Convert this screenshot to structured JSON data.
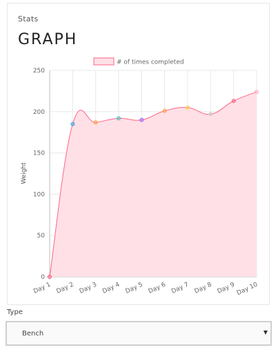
{
  "card": {
    "label": "Stats",
    "title": "GRAPH"
  },
  "form": {
    "type_label": "Type",
    "type_value": "Bench",
    "caret": "▼"
  },
  "colors": {
    "line": "#ff6384",
    "fill": "#ffe0e6",
    "grid": "#e8e8e8",
    "axis": "#bdbdbd"
  },
  "chart_data": {
    "type": "area",
    "categories": [
      "Day 1",
      "Day 2",
      "Day 3",
      "Day 4",
      "Day 5",
      "Day 6",
      "Day 7",
      "Day 8",
      "Day 9",
      "Day 10"
    ],
    "series": [
      {
        "name": "# of times completed",
        "values": [
          0,
          185,
          187,
          192,
          190,
          201,
          205,
          197,
          213,
          224
        ]
      }
    ],
    "point_colors": [
      "#ff6384",
      "#36a2eb",
      "#ff9f40",
      "#4bc0c0",
      "#9966ff",
      "#ff9f40",
      "#ffcd56",
      "#c9cbcf",
      "#ff6384",
      "#ffb1c1"
    ],
    "ylabel": "Weight",
    "ylim": [
      0,
      250
    ],
    "yticks": [
      0,
      50,
      100,
      150,
      200,
      250
    ],
    "grid": true,
    "legend": "top"
  }
}
